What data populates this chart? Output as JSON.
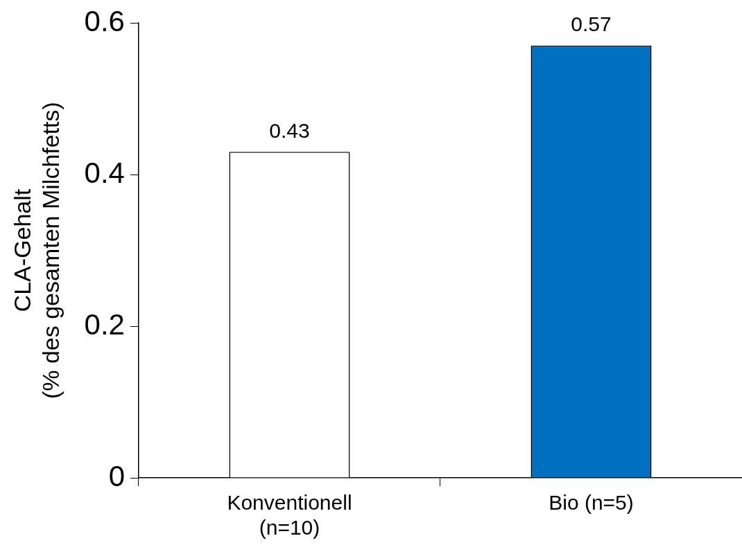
{
  "chart_data": {
    "type": "bar",
    "ylabel": "CLA-Gehalt\n(% des gesamten Milchfetts)",
    "categories": [
      "Konventionell\n(n=10)",
      "Bio (n=5)"
    ],
    "values": [
      0.43,
      0.57
    ],
    "colors": [
      "#ffffff",
      "#0070c0"
    ],
    "ylim": [
      0,
      0.6
    ],
    "yticks": [
      0,
      0.2,
      0.4,
      0.6
    ],
    "data_labels": true
  }
}
